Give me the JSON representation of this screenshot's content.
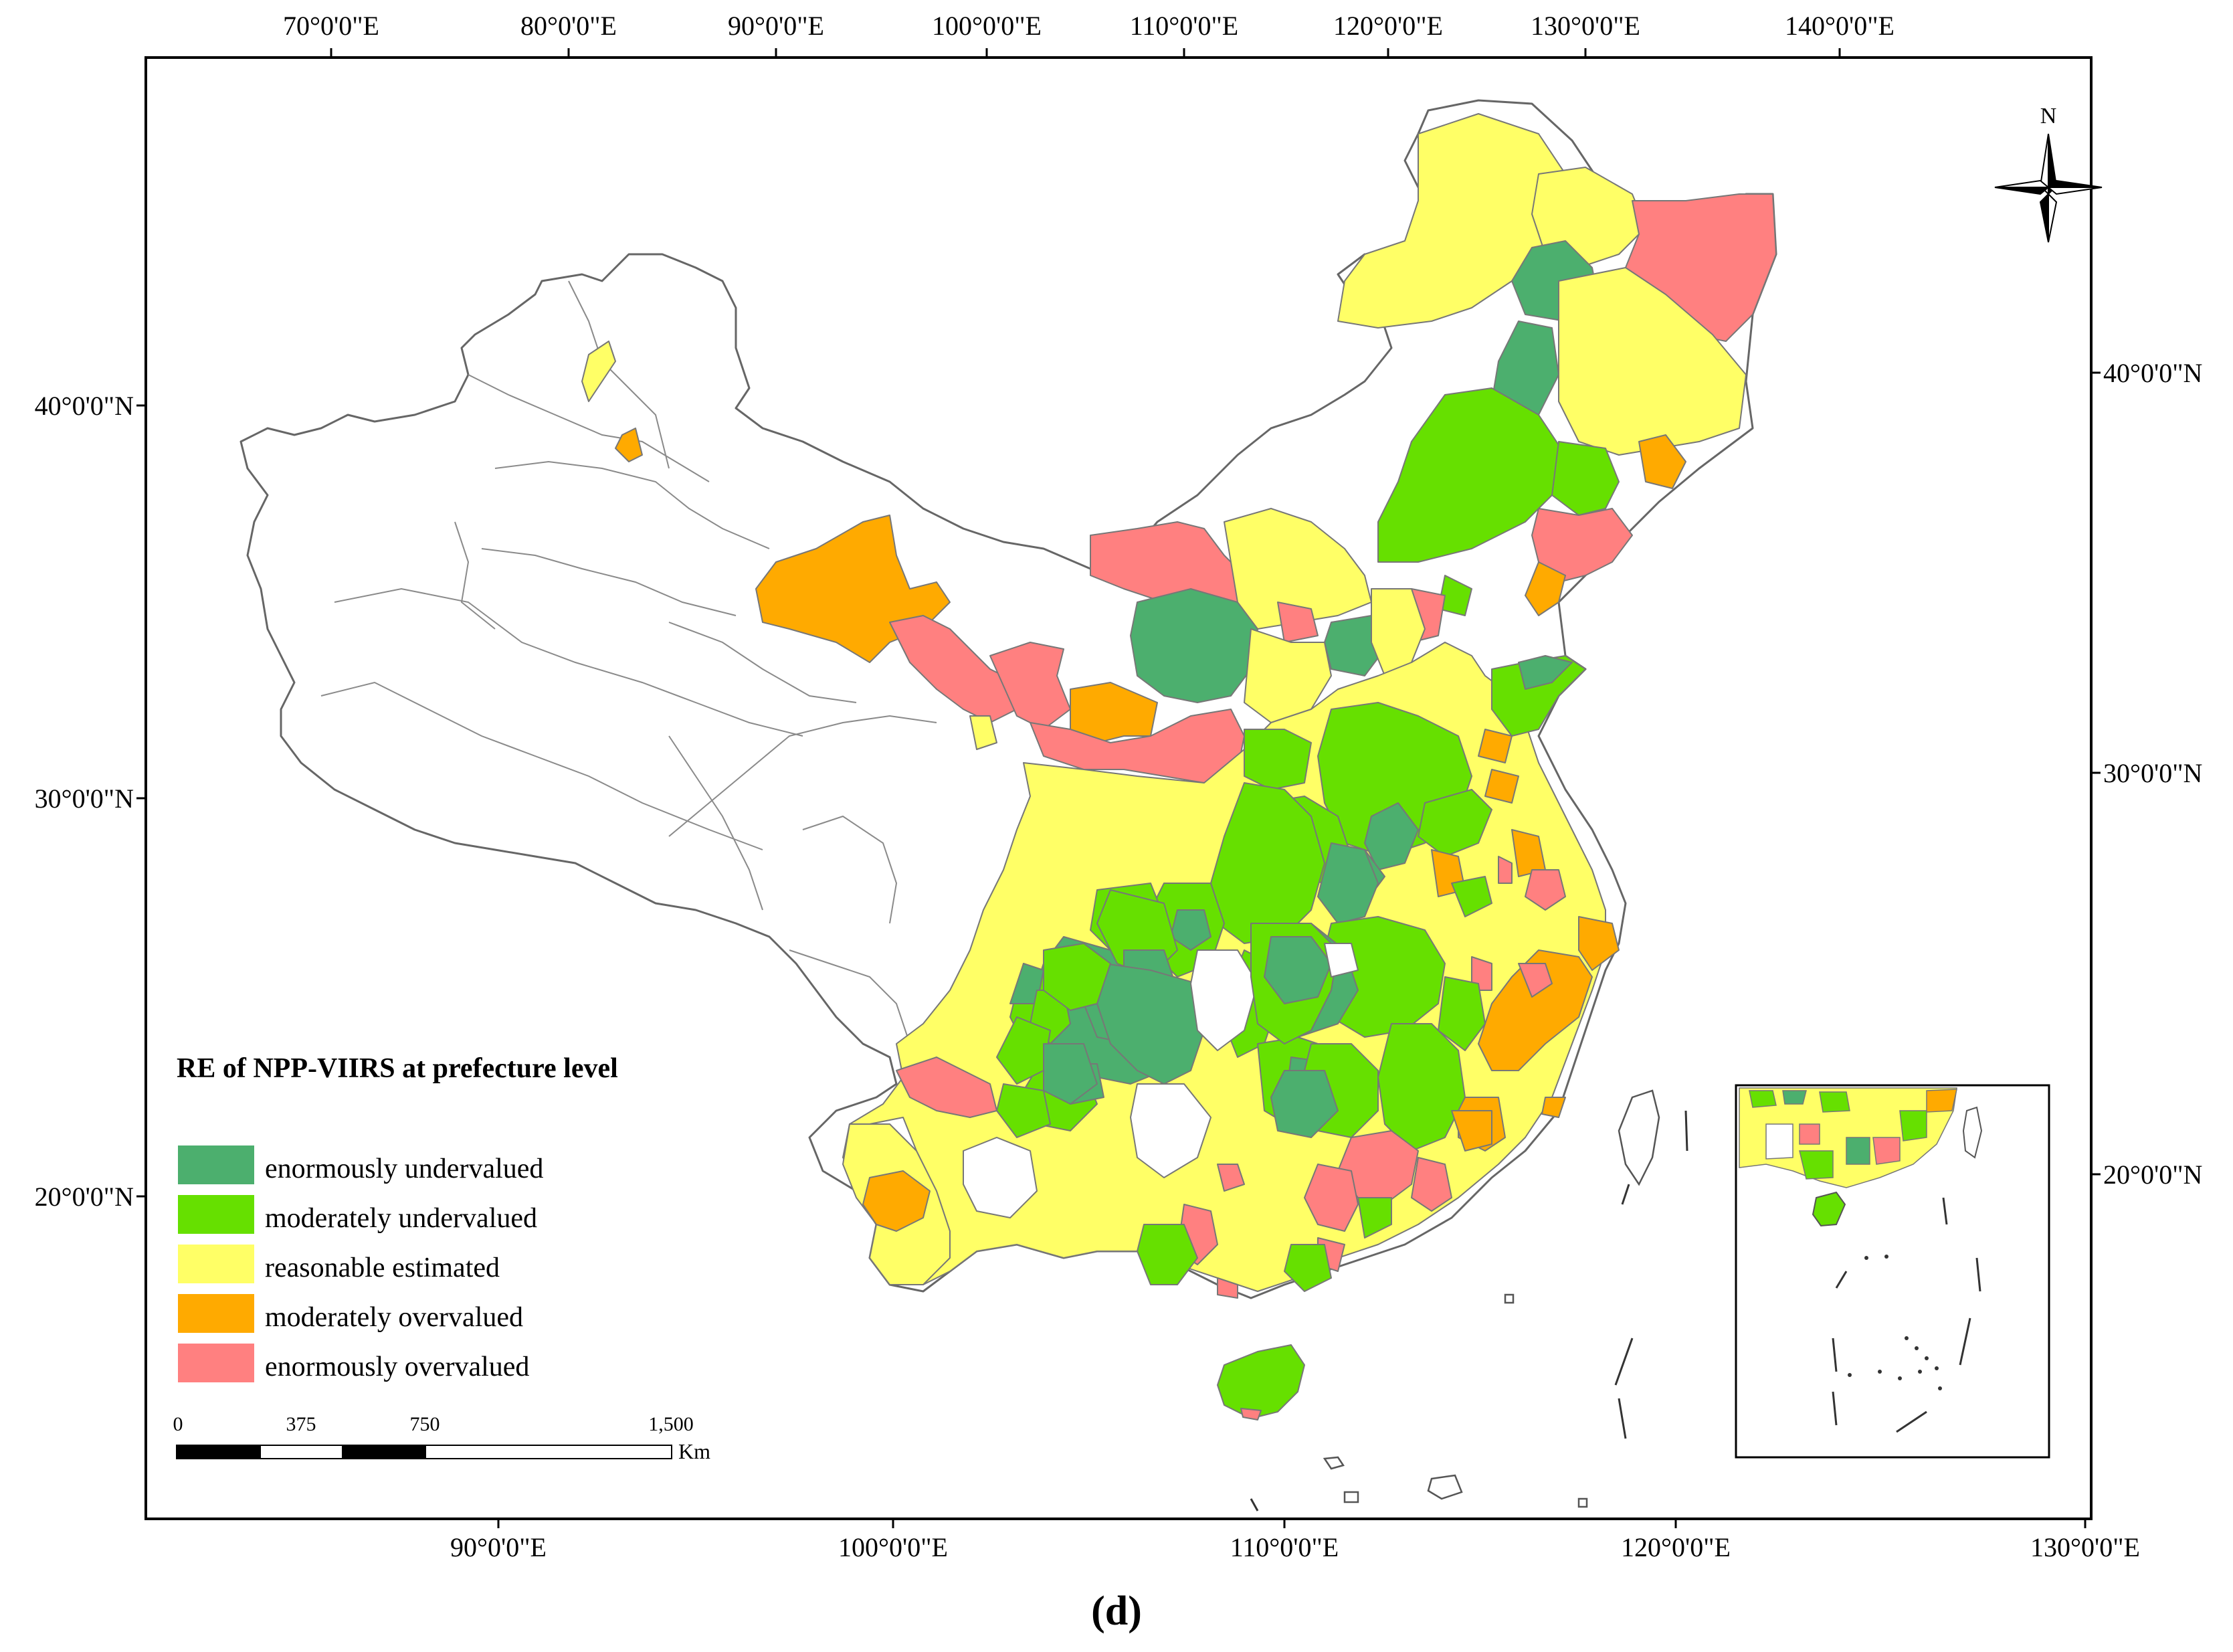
{
  "map": {
    "top_ticks": [
      "70°0'0\"E",
      "80°0'0\"E",
      "90°0'0\"E",
      "100°0'0\"E",
      "110°0'0\"E",
      "120°0'0\"E",
      "130°0'0\"E",
      "140°0'0\"E"
    ],
    "bottom_ticks": [
      "90°0'0\"E",
      "100°0'0\"E",
      "110°0'0\"E",
      "120°0'0\"E",
      "130°0'0\"E"
    ],
    "left_ticks": [
      "40°0'0\"N",
      "30°0'0\"N",
      "20°0'0\"N"
    ],
    "right_ticks": [
      "40°0'0\"N",
      "30°0'0\"N",
      "20°0'0\"N"
    ],
    "north_label": "N",
    "panel_label": "(d)"
  },
  "legend": {
    "title": "RE of NPP-VIIRS at prefecture level",
    "items": [
      {
        "label": "enormously undervalued",
        "color": "#4caf6e"
      },
      {
        "label": "moderately undervalued",
        "color": "#66e000"
      },
      {
        "label": "reasonable estimated",
        "color": "#ffff66"
      },
      {
        "label": "moderately overvalued",
        "color": "#ffaa00"
      },
      {
        "label": "enormously overvalued",
        "color": "#ff8080"
      }
    ]
  },
  "scale_bar": {
    "labels": [
      "0",
      "375",
      "750",
      "1,500"
    ],
    "unit": "Km"
  }
}
